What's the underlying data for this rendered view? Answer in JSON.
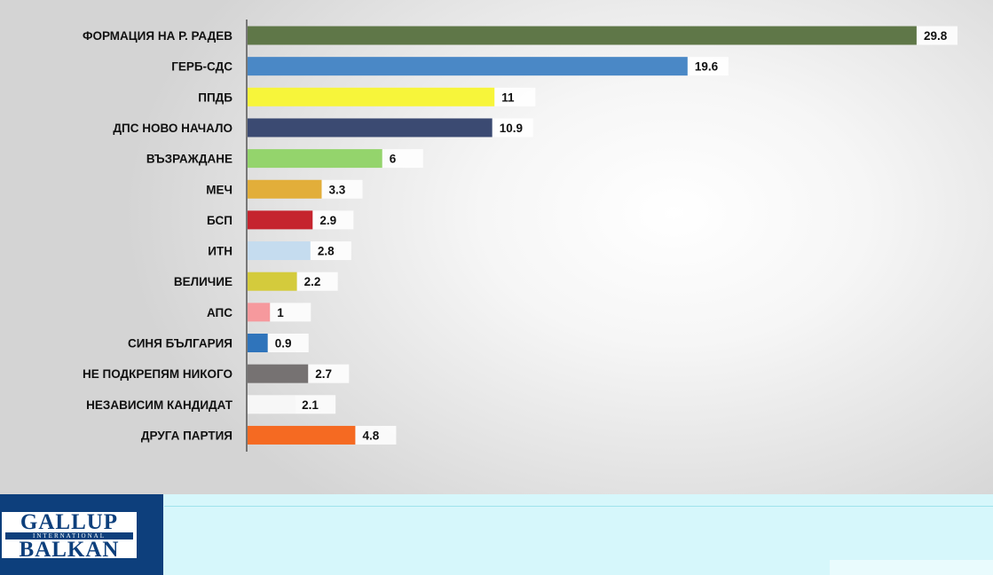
{
  "chart_data": {
    "type": "bar",
    "orientation": "horizontal",
    "categories": [
      "ФОРМАЦИЯ НА Р. РАДЕВ",
      "ГЕРБ-СДС",
      "ППДБ",
      "ДПС НОВО НАЧАЛО",
      "ВЪЗРАЖДАНЕ",
      "МЕЧ",
      "БСП",
      "ИТН",
      "ВЕЛИЧИЕ",
      "АПС",
      "СИНЯ БЪЛГАРИЯ",
      "НЕ ПОДКРЕПЯМ НИКОГО",
      "НЕЗАВИСИМ КАНДИДАТ",
      "ДРУГА ПАРТИЯ"
    ],
    "values": [
      29.8,
      19.6,
      11,
      10.9,
      6,
      3.3,
      2.9,
      2.8,
      2.2,
      1,
      0.9,
      2.7,
      2.1,
      4.8
    ],
    "value_labels": [
      "29.8",
      "19.6",
      "11",
      "10.9",
      "6",
      "3.3",
      "2.9",
      "2.8",
      "2.2",
      "1",
      "0.9",
      "2.7",
      "2.1",
      "4.8"
    ],
    "colors": [
      "#5f7748",
      "#4a88c6",
      "#f7f53a",
      "#3b4a72",
      "#94d46c",
      "#e2ae3a",
      "#c5242e",
      "#c5dcef",
      "#d4cb3c",
      "#f6999d",
      "#2f74bb",
      "#767272",
      "#f7f7f7",
      "#f56a22"
    ],
    "xlim": [
      0,
      30
    ],
    "grid": false,
    "legend": "none",
    "title": "",
    "xlabel": "",
    "ylabel": ""
  },
  "branding": {
    "logo_top": "GALLUP",
    "logo_band": "INTERNATIONAL",
    "logo_bottom": "BALKAN",
    "logo_color": "#0d3f7c",
    "footer_color": "#d6f7fb"
  }
}
